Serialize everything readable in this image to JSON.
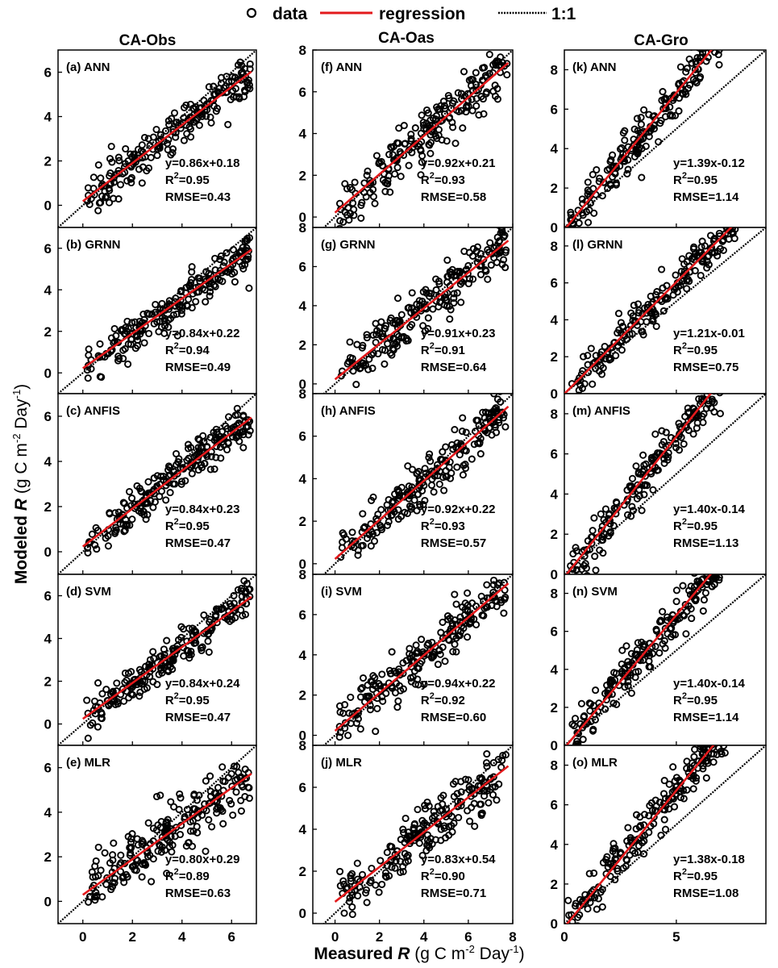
{
  "legend": {
    "data": "data",
    "regression": "regression",
    "one_to_one": "1:1",
    "regression_color": "#e31a1c",
    "point_color": "#000000"
  },
  "axis_labels": {
    "x_prefix": "Measured ",
    "x_var": "R",
    "x_units": " (g C m",
    "x_exp": "-2",
    "x_day": " Day",
    "x_exp2": "-1",
    "x_close": ")",
    "y_prefix": "Modeled ",
    "y_var": "R",
    "y_units": " (g C m",
    "y_exp": "-2",
    "y_day": " Day",
    "y_exp2": "-1",
    "y_close": ")"
  },
  "sites": [
    "CA-Obs",
    "CA-Oas",
    "CA-Gro"
  ],
  "chart_data": [
    {
      "type": "scatter",
      "site": "CA-Obs",
      "label": "(a) ANN",
      "eq": "y=0.86x+0.18",
      "r2": "0.95",
      "rmse": "RMSE=0.43",
      "slope": 0.86,
      "intercept": 0.18,
      "xlim": [
        -1,
        7
      ],
      "ylim": [
        -1,
        7
      ],
      "xticks": [
        0,
        2,
        4,
        6
      ],
      "yticks": [
        0,
        2,
        4,
        6
      ],
      "spread": 0.45
    },
    {
      "type": "scatter",
      "site": "CA-Obs",
      "label": "(b) GRNN",
      "eq": "y=0.84x+0.22",
      "r2": "0.94",
      "rmse": "RMSE=0.49",
      "slope": 0.84,
      "intercept": 0.22,
      "xlim": [
        -1,
        7
      ],
      "ylim": [
        -1,
        7
      ],
      "xticks": [
        0,
        2,
        4,
        6
      ],
      "yticks": [
        0,
        2,
        4,
        6
      ],
      "spread": 0.5
    },
    {
      "type": "scatter",
      "site": "CA-Obs",
      "label": "(c) ANFIS",
      "eq": "y=0.84x+0.23",
      "r2": "0.95",
      "rmse": "RMSE=0.47",
      "slope": 0.84,
      "intercept": 0.23,
      "xlim": [
        -1,
        7
      ],
      "ylim": [
        -1,
        7
      ],
      "xticks": [
        0,
        2,
        4,
        6
      ],
      "yticks": [
        0,
        2,
        4,
        6
      ],
      "spread": 0.45
    },
    {
      "type": "scatter",
      "site": "CA-Obs",
      "label": "(d) SVM",
      "eq": "y=0.84x+0.24",
      "r2": "0.95",
      "rmse": "RMSE=0.47",
      "slope": 0.84,
      "intercept": 0.24,
      "xlim": [
        -1,
        7
      ],
      "ylim": [
        -1,
        7
      ],
      "xticks": [
        0,
        2,
        4,
        6
      ],
      "yticks": [
        0,
        2,
        4,
        6
      ],
      "spread": 0.45
    },
    {
      "type": "scatter",
      "site": "CA-Obs",
      "label": "(e) MLR",
      "eq": "y=0.80x+0.29",
      "r2": "0.89",
      "rmse": "RMSE=0.63",
      "slope": 0.8,
      "intercept": 0.29,
      "xlim": [
        -1,
        7
      ],
      "ylim": [
        -1,
        7
      ],
      "xticks": [
        0,
        2,
        4,
        6
      ],
      "yticks": [
        0,
        2,
        4,
        6
      ],
      "spread": 0.6
    },
    {
      "type": "scatter",
      "site": "CA-Oas",
      "label": "(f) ANN",
      "eq": "y=0.92x+0.21",
      "r2": "0.93",
      "rmse": "RMSE=0.58",
      "slope": 0.92,
      "intercept": 0.21,
      "xlim": [
        -1,
        8
      ],
      "ylim": [
        -0.5,
        8
      ],
      "xticks": [
        0,
        2,
        4,
        6,
        8
      ],
      "yticks": [
        0,
        2,
        4,
        6,
        8
      ],
      "spread": 0.6
    },
    {
      "type": "scatter",
      "site": "CA-Oas",
      "label": "(g) GRNN",
      "eq": "y=0.91x+0.23",
      "r2": "0.91",
      "rmse": "RMSE=0.64",
      "slope": 0.91,
      "intercept": 0.23,
      "xlim": [
        -1,
        8
      ],
      "ylim": [
        -0.5,
        8
      ],
      "xticks": [
        0,
        2,
        4,
        6,
        8
      ],
      "yticks": [
        0,
        2,
        4,
        6,
        8
      ],
      "spread": 0.65
    },
    {
      "type": "scatter",
      "site": "CA-Oas",
      "label": "(h) ANFIS",
      "eq": "y=0.92x+0.22",
      "r2": "0.93",
      "rmse": "RMSE=0.57",
      "slope": 0.92,
      "intercept": 0.22,
      "xlim": [
        -1,
        8
      ],
      "ylim": [
        -0.5,
        8
      ],
      "xticks": [
        0,
        2,
        4,
        6,
        8
      ],
      "yticks": [
        0,
        2,
        4,
        6,
        8
      ],
      "spread": 0.6
    },
    {
      "type": "scatter",
      "site": "CA-Oas",
      "label": "(i) SVM",
      "eq": "y=0.94x+0.22",
      "r2": "0.92",
      "rmse": "RMSE=0.60",
      "slope": 0.94,
      "intercept": 0.22,
      "xlim": [
        -1,
        8
      ],
      "ylim": [
        -0.5,
        8
      ],
      "xticks": [
        0,
        2,
        4,
        6,
        8
      ],
      "yticks": [
        0,
        2,
        4,
        6,
        8
      ],
      "spread": 0.6
    },
    {
      "type": "scatter",
      "site": "CA-Oas",
      "label": "(j) MLR",
      "eq": "y=0.83x+0.54",
      "r2": "0.90",
      "rmse": "RMSE=0.71",
      "slope": 0.83,
      "intercept": 0.54,
      "xlim": [
        -1,
        8
      ],
      "ylim": [
        -0.5,
        8
      ],
      "xticks": [
        0,
        2,
        4,
        6,
        8
      ],
      "yticks": [
        0,
        2,
        4,
        6,
        8
      ],
      "spread": 0.65
    },
    {
      "type": "scatter",
      "site": "CA-Gro",
      "label": "(k) ANN",
      "eq": "y=1.39x-0.12",
      "r2": "0.95",
      "rmse": "RMSE=1.14",
      "slope": 1.39,
      "intercept": -0.12,
      "xlim": [
        0,
        9
      ],
      "ylim": [
        0,
        9
      ],
      "xticks": [
        0,
        5
      ],
      "yticks": [
        0,
        2,
        4,
        6,
        8
      ],
      "spread": 0.6
    },
    {
      "type": "scatter",
      "site": "CA-Gro",
      "label": "(l) GRNN",
      "eq": "y=1.21x-0.01",
      "r2": "0.95",
      "rmse": "RMSE=0.75",
      "slope": 1.21,
      "intercept": -0.01,
      "xlim": [
        0,
        9
      ],
      "ylim": [
        0,
        9
      ],
      "xticks": [
        0,
        5
      ],
      "yticks": [
        0,
        2,
        4,
        6,
        8
      ],
      "spread": 0.5
    },
    {
      "type": "scatter",
      "site": "CA-Gro",
      "label": "(m) ANFIS",
      "eq": "y=1.40x-0.14",
      "r2": "0.95",
      "rmse": "RMSE=1.13",
      "slope": 1.4,
      "intercept": -0.14,
      "xlim": [
        0,
        9
      ],
      "ylim": [
        0,
        9
      ],
      "xticks": [
        0,
        5
      ],
      "yticks": [
        0,
        2,
        4,
        6,
        8
      ],
      "spread": 0.6
    },
    {
      "type": "scatter",
      "site": "CA-Gro",
      "label": "(n) SVM",
      "eq": "y=1.40x-0.14",
      "r2": "0.95",
      "rmse": "RMSE=1.14",
      "slope": 1.4,
      "intercept": -0.14,
      "xlim": [
        0,
        9
      ],
      "ylim": [
        0,
        9
      ],
      "xticks": [
        0,
        5
      ],
      "yticks": [
        0,
        2,
        4,
        6,
        8
      ],
      "spread": 0.6
    },
    {
      "type": "scatter",
      "site": "CA-Gro",
      "label": "(o) MLR",
      "eq": "y=1.38x-0.18",
      "r2": "0.95",
      "rmse": "RMSE=1.08",
      "slope": 1.38,
      "intercept": -0.18,
      "xlim": [
        0,
        9
      ],
      "ylim": [
        0,
        9
      ],
      "xticks": [
        0,
        5
      ],
      "yticks": [
        0,
        2,
        4,
        6,
        8
      ],
      "spread": 0.6
    }
  ]
}
